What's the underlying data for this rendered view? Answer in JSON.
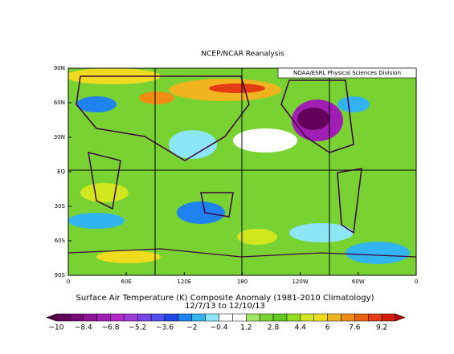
{
  "title": "NCEP/NCAR Reanalysis",
  "credit": "NOAA/ESRL Physical Sciences Division",
  "lat_labels": [
    "90N",
    "60N",
    "30N",
    "EQ",
    "30S",
    "60S",
    "90S"
  ],
  "lon_labels": [
    "0",
    "60E",
    "120E",
    "180",
    "120W",
    "60W",
    "0"
  ],
  "caption": "Surface Air Temperature (K) Composite Anomaly (1981-2010 Climatology)",
  "dates": "12/7/13  to 12/10/13",
  "colorbar": {
    "labels": [
      "−10",
      "−8.4",
      "−6.8",
      "−5.2",
      "−3.6",
      "−2",
      "−0.4",
      "1.2",
      "2.8",
      "4.4",
      "6",
      "7.6",
      "9.2"
    ],
    "low_color": "#500040",
    "high_color": "#b40000",
    "colors": [
      "#64005a",
      "#780a78",
      "#8c1496",
      "#a01eb4",
      "#b428c8",
      "#a03cdc",
      "#7846e6",
      "#5050f0",
      "#1e46e6",
      "#1e82f0",
      "#32b4f0",
      "#8ce6f5",
      "#ffffff",
      "#ffffff",
      "#a0e664",
      "#78d232",
      "#64c81e",
      "#96dc1e",
      "#d2e61e",
      "#f0dc1e",
      "#f0b41e",
      "#f08c14",
      "#eb6414",
      "#e63c14",
      "#d21e0a"
    ]
  }
}
